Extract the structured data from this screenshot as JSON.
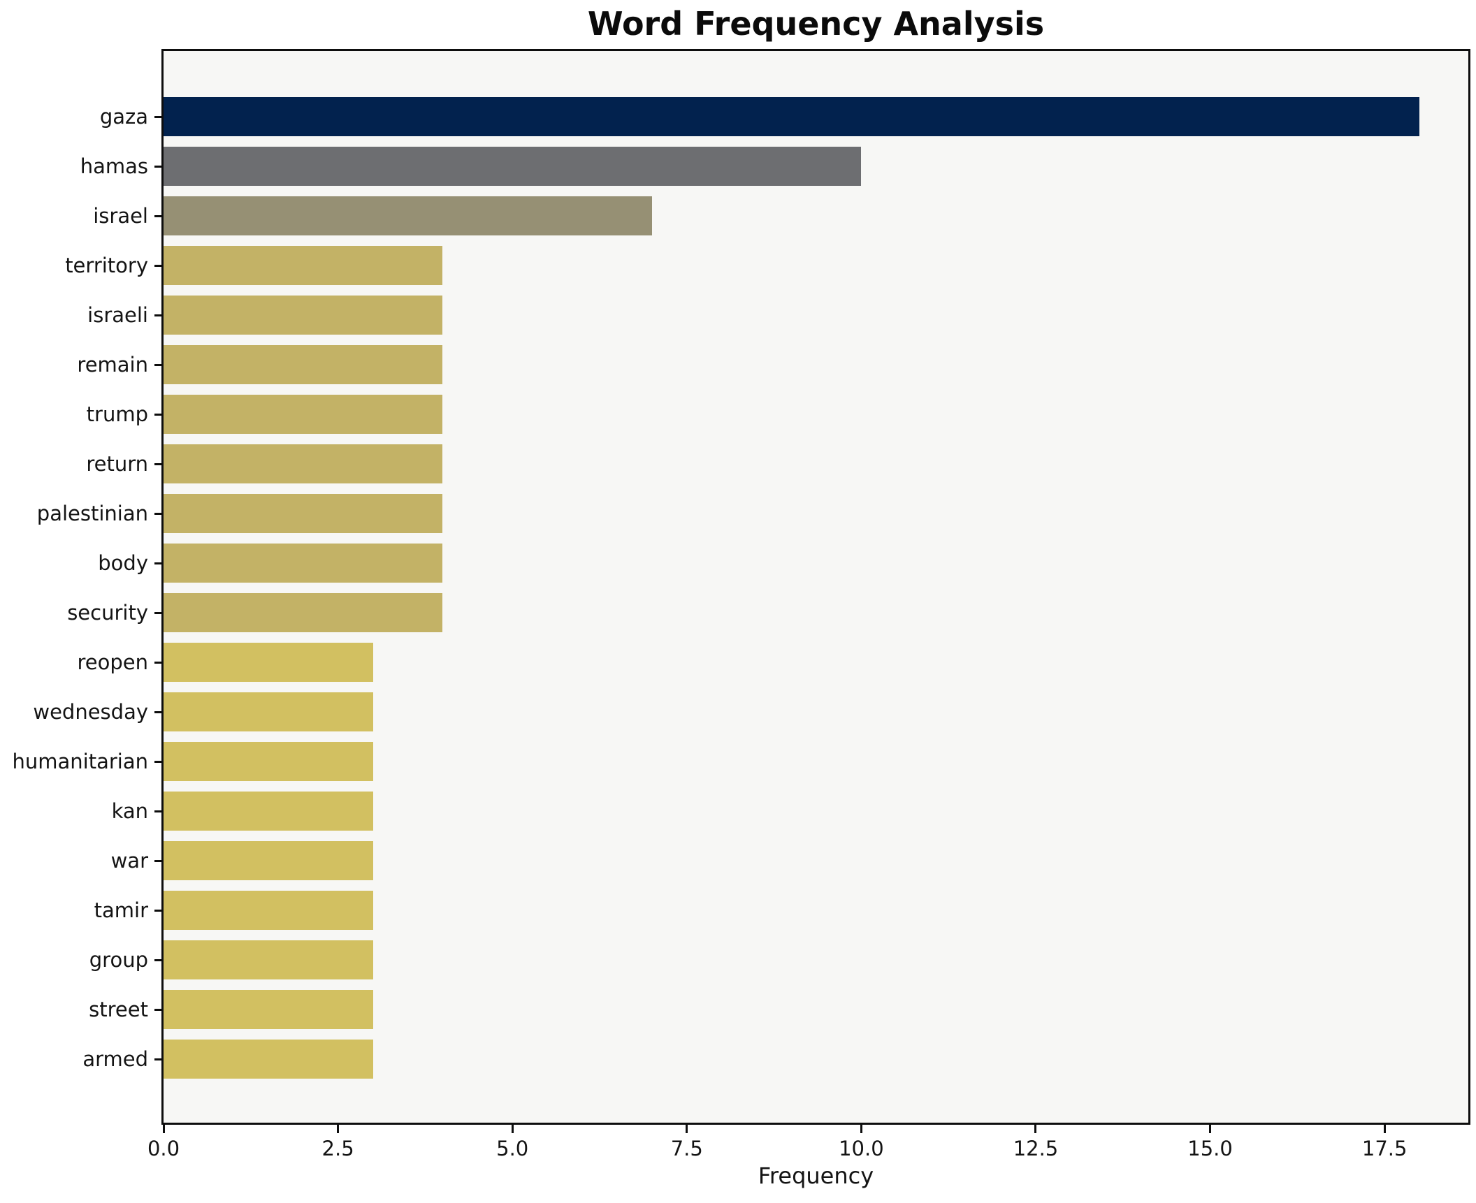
{
  "chart_data": {
    "type": "bar",
    "orientation": "horizontal",
    "title": "Word Frequency Analysis",
    "xlabel": "Frequency",
    "ylabel": "",
    "categories": [
      "gaza",
      "hamas",
      "israel",
      "territory",
      "israeli",
      "remain",
      "trump",
      "return",
      "palestinian",
      "body",
      "security",
      "reopen",
      "wednesday",
      "humanitarian",
      "kan",
      "war",
      "tamir",
      "group",
      "street",
      "armed"
    ],
    "values": [
      18,
      10,
      7,
      4,
      4,
      4,
      4,
      4,
      4,
      4,
      4,
      3,
      3,
      3,
      3,
      3,
      3,
      3,
      3,
      3
    ],
    "bar_colors": [
      "#02224e",
      "#6d6e71",
      "#969074",
      "#c3b266",
      "#c3b266",
      "#c3b266",
      "#c3b266",
      "#c3b266",
      "#c3b266",
      "#c3b266",
      "#c3b266",
      "#d2c061",
      "#d2c061",
      "#d2c061",
      "#d2c061",
      "#d2c061",
      "#d2c061",
      "#d2c061",
      "#d2c061",
      "#d2c061"
    ],
    "xlim": [
      0,
      18.7
    ],
    "x_tick_values": [
      0,
      2.5,
      5,
      7.5,
      10,
      12.5,
      15,
      17.5
    ],
    "x_tick_labels": [
      "0.0",
      "2.5",
      "5.0",
      "7.5",
      "10.0",
      "12.5",
      "15.0",
      "17.5"
    ],
    "grid": false,
    "legend": null,
    "colors": {
      "figure_bg": "#ffffff",
      "plot_bg": "#f7f7f5",
      "spine": "#0e0e0e",
      "text": "#141414"
    }
  }
}
